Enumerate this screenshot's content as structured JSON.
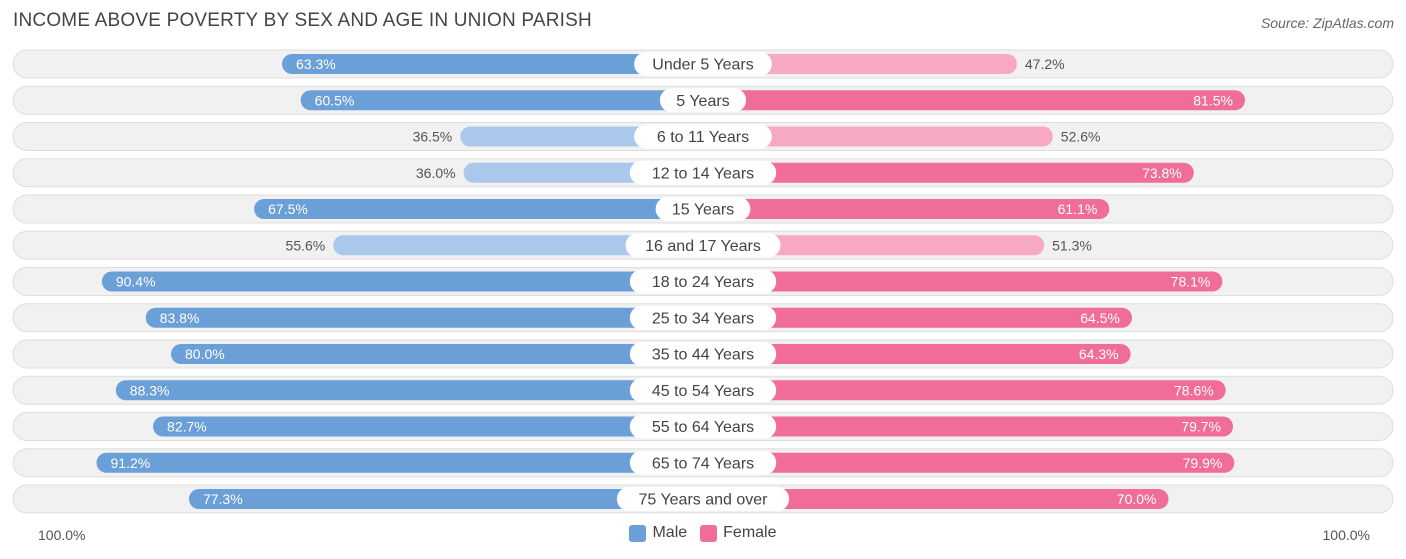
{
  "title": "INCOME ABOVE POVERTY BY SEX AND AGE IN UNION PARISH",
  "source": "Source: ZipAtlas.com",
  "axis": {
    "left_label": "100.0%",
    "right_label": "100.0%"
  },
  "legend": {
    "male_label": "Male",
    "female_label": "Female"
  },
  "colors": {
    "male_strong": "#6a9fd8",
    "male_light": "#a9c8ec",
    "female_strong": "#f06d98",
    "female_light": "#f7a9c2",
    "row_bg": "#f1f1f1",
    "row_border": "#dedede"
  },
  "chart_data": {
    "type": "bar",
    "orientation": "horizontal-diverging",
    "title": "INCOME ABOVE POVERTY BY SEX AND AGE IN UNION PARISH",
    "xlim": [
      -100,
      100
    ],
    "unit": "%",
    "categories": [
      "Under 5 Years",
      "5 Years",
      "6 to 11 Years",
      "12 to 14 Years",
      "15 Years",
      "16 and 17 Years",
      "18 to 24 Years",
      "25 to 34 Years",
      "35 to 44 Years",
      "45 to 54 Years",
      "55 to 64 Years",
      "65 to 74 Years",
      "75 Years and over"
    ],
    "series": [
      {
        "name": "Male",
        "values": [
          63.3,
          60.5,
          36.5,
          36.0,
          67.5,
          55.6,
          90.4,
          83.8,
          80.0,
          88.3,
          82.7,
          91.2,
          77.3
        ],
        "labels": [
          "63.3%",
          "60.5%",
          "36.5%",
          "36.0%",
          "67.5%",
          "55.6%",
          "90.4%",
          "83.8%",
          "80.0%",
          "88.3%",
          "82.7%",
          "91.2%",
          "77.3%"
        ]
      },
      {
        "name": "Female",
        "values": [
          47.2,
          81.5,
          52.6,
          73.8,
          61.1,
          51.3,
          78.1,
          64.5,
          64.3,
          78.6,
          79.7,
          79.9,
          70.0
        ],
        "labels": [
          "47.2%",
          "81.5%",
          "52.6%",
          "73.8%",
          "61.1%",
          "51.3%",
          "78.1%",
          "64.5%",
          "64.3%",
          "78.6%",
          "79.7%",
          "79.9%",
          "70.0%"
        ]
      }
    ],
    "legend_position": "bottom-center"
  }
}
